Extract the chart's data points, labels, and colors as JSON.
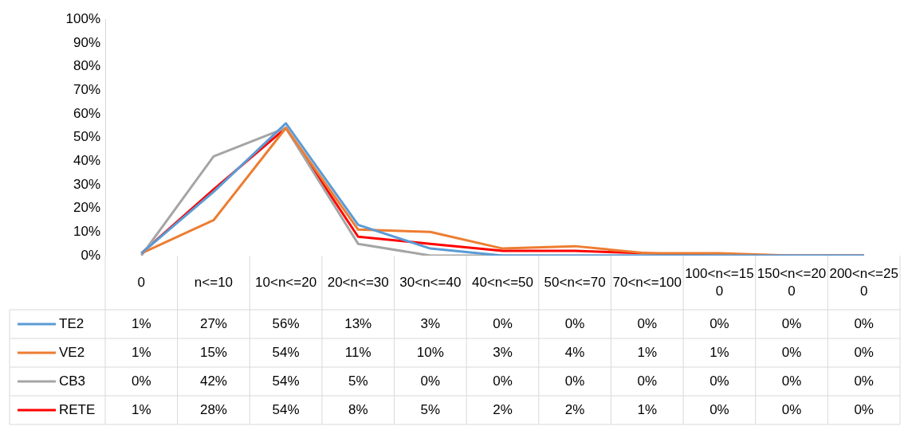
{
  "chart_data": {
    "type": "line",
    "categories": [
      "0",
      "n<=10",
      "10<n<=20",
      "20<n<=30",
      "30<n<=40",
      "40<n<=50",
      "50<n<=70",
      "70<n<=100",
      "100<n<=150",
      "150<n<=200",
      "200<n<=250"
    ],
    "series": [
      {
        "name": "TE2",
        "color": "#5b9bd5",
        "values": [
          1,
          27,
          56,
          13,
          3,
          0,
          0,
          0,
          0,
          0,
          0
        ],
        "value_labels": [
          "1%",
          "27%",
          "56%",
          "13%",
          "3%",
          "0%",
          "0%",
          "0%",
          "0%",
          "0%",
          "0%"
        ]
      },
      {
        "name": "VE2",
        "color": "#ed7d31",
        "values": [
          1,
          15,
          54,
          11,
          10,
          3,
          4,
          1,
          1,
          0,
          0
        ],
        "value_labels": [
          "1%",
          "15%",
          "54%",
          "11%",
          "10%",
          "3%",
          "4%",
          "1%",
          "1%",
          "0%",
          "0%"
        ]
      },
      {
        "name": "CB3",
        "color": "#a5a5a5",
        "values": [
          0,
          42,
          54,
          5,
          0,
          0,
          0,
          0,
          0,
          0,
          0
        ],
        "value_labels": [
          "0%",
          "42%",
          "54%",
          "5%",
          "0%",
          "0%",
          "0%",
          "0%",
          "0%",
          "0%",
          "0%"
        ]
      },
      {
        "name": "RETE",
        "color": "#ff0000",
        "values": [
          1,
          28,
          54,
          8,
          5,
          2,
          2,
          1,
          0,
          0,
          0
        ],
        "value_labels": [
          "1%",
          "28%",
          "54%",
          "8%",
          "5%",
          "2%",
          "2%",
          "1%",
          "0%",
          "0%",
          "0%"
        ]
      }
    ],
    "ylim": [
      0,
      100
    ],
    "yticks": [
      {
        "value": 0,
        "label": "0%"
      },
      {
        "value": 10,
        "label": "10%"
      },
      {
        "value": 20,
        "label": "20%"
      },
      {
        "value": 30,
        "label": "30%"
      },
      {
        "value": 40,
        "label": "40%"
      },
      {
        "value": 50,
        "label": "50%"
      },
      {
        "value": 60,
        "label": "60%"
      },
      {
        "value": 70,
        "label": "70%"
      },
      {
        "value": 80,
        "label": "80%"
      },
      {
        "value": 90,
        "label": "90%"
      },
      {
        "value": 100,
        "label": "100%"
      }
    ],
    "grid": false,
    "legend": "bottom left",
    "marker": "none",
    "line_style": "solid"
  }
}
